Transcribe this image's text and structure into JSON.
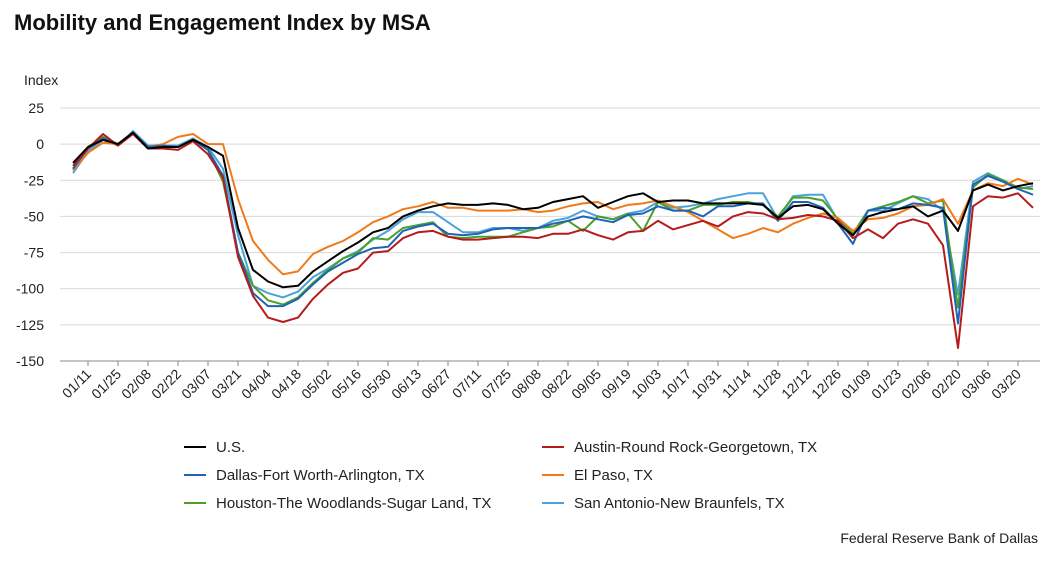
{
  "title": "Mobility and Engagement Index by MSA",
  "source": "Federal Reserve Bank of Dallas",
  "chart_data": {
    "type": "line",
    "title": "Mobility and Engagement Index by MSA",
    "ylabel": "Index",
    "xlabel": "",
    "ylim": [
      -150,
      25
    ],
    "yticks": [
      25,
      0,
      -25,
      -50,
      -75,
      -100,
      -125,
      -150
    ],
    "grid": "horizontal",
    "legend_position": "bottom",
    "x_tick_labels": [
      "01/11",
      "01/25",
      "02/08",
      "02/22",
      "03/07",
      "03/21",
      "04/04",
      "04/18",
      "05/02",
      "05/16",
      "05/30",
      "06/13",
      "06/27",
      "07/11",
      "07/25",
      "08/08",
      "08/22",
      "09/05",
      "09/19",
      "10/03",
      "10/17",
      "10/31",
      "11/14",
      "11/28",
      "12/12",
      "12/26",
      "01/09",
      "01/23",
      "02/06",
      "02/20",
      "03/06",
      "03/20"
    ],
    "x": [
      "01/04",
      "01/11",
      "01/18",
      "01/25",
      "02/01",
      "02/08",
      "02/15",
      "02/22",
      "02/29",
      "03/07",
      "03/14",
      "03/21",
      "03/28",
      "04/04",
      "04/11",
      "04/18",
      "04/25",
      "05/02",
      "05/09",
      "05/16",
      "05/23",
      "05/30",
      "06/06",
      "06/13",
      "06/20",
      "06/27",
      "07/04",
      "07/11",
      "07/18",
      "07/25",
      "08/01",
      "08/08",
      "08/15",
      "08/22",
      "08/29",
      "09/05",
      "09/12",
      "09/19",
      "09/26",
      "10/03",
      "10/10",
      "10/17",
      "10/24",
      "10/31",
      "11/07",
      "11/14",
      "11/21",
      "11/28",
      "12/05",
      "12/12",
      "12/19",
      "12/26",
      "01/02",
      "01/09",
      "01/16",
      "01/23",
      "01/30",
      "02/06",
      "02/13",
      "02/20",
      "02/27",
      "03/06",
      "03/13",
      "03/20",
      "03/27"
    ],
    "series": [
      {
        "name": "U.S.",
        "color": "#000000",
        "values": [
          -13,
          -2,
          3,
          0,
          8,
          -3,
          -2,
          -2,
          3,
          -2,
          -8,
          -58,
          -87,
          -95,
          -99,
          -98,
          -88,
          -81,
          -74,
          -68,
          -61,
          -58,
          -50,
          -46,
          -43,
          -41,
          -42,
          -42,
          -41,
          -42,
          -45,
          -44,
          -40,
          -38,
          -36,
          -44,
          -40,
          -36,
          -34,
          -40,
          -39,
          -39,
          -41,
          -41,
          -41,
          -41,
          -42,
          -51,
          -43,
          -42,
          -45,
          -55,
          -63,
          -50,
          -47,
          -45,
          -43,
          -50,
          -46,
          -60,
          -32,
          -28,
          -32,
          -29,
          -27
        ]
      },
      {
        "name": "Austin-Round Rock-Georgetown, TX",
        "color": "#b51b1b",
        "values": [
          -15,
          -3,
          7,
          -1,
          7,
          -3,
          -3,
          -4,
          2,
          -7,
          -23,
          -78,
          -105,
          -120,
          -123,
          -120,
          -107,
          -97,
          -89,
          -86,
          -75,
          -74,
          -65,
          -61,
          -60,
          -64,
          -66,
          -66,
          -65,
          -64,
          -64,
          -65,
          -62,
          -62,
          -59,
          -63,
          -66,
          -61,
          -60,
          -53,
          -59,
          -56,
          -53,
          -57,
          -50,
          -47,
          -48,
          -52,
          -51,
          -49,
          -50,
          -53,
          -65,
          -59,
          -65,
          -55,
          -52,
          -55,
          -70,
          -141,
          -43,
          -36,
          -37,
          -34,
          -44
        ]
      },
      {
        "name": "Dallas-Fort Worth-Arlington, TX",
        "color": "#1f63b5",
        "values": [
          -17,
          -3,
          4,
          0,
          8,
          -2,
          -1,
          -2,
          3,
          -4,
          -22,
          -75,
          -103,
          -112,
          -112,
          -107,
          -97,
          -88,
          -82,
          -76,
          -72,
          -71,
          -60,
          -57,
          -55,
          -62,
          -63,
          -62,
          -59,
          -58,
          -58,
          -58,
          -55,
          -53,
          -50,
          -52,
          -54,
          -49,
          -48,
          -43,
          -46,
          -46,
          -50,
          -43,
          -43,
          -41,
          -41,
          -53,
          -40,
          -40,
          -44,
          -55,
          -69,
          -46,
          -44,
          -45,
          -41,
          -42,
          -44,
          -124,
          -28,
          -22,
          -26,
          -31,
          -35
        ]
      },
      {
        "name": "El Paso, TX",
        "color": "#f07a1a",
        "values": [
          -18,
          -6,
          1,
          0,
          7,
          -2,
          0,
          5,
          7,
          0,
          0,
          -38,
          -67,
          -80,
          -90,
          -88,
          -76,
          -71,
          -67,
          -61,
          -54,
          -50,
          -45,
          -43,
          -40,
          -44,
          -44,
          -46,
          -46,
          -46,
          -45,
          -47,
          -46,
          -43,
          -41,
          -40,
          -45,
          -42,
          -41,
          -39,
          -43,
          -47,
          -53,
          -59,
          -65,
          -62,
          -58,
          -61,
          -55,
          -51,
          -48,
          -51,
          -60,
          -52,
          -51,
          -48,
          -43,
          -42,
          -38,
          -55,
          -32,
          -27,
          -29,
          -24,
          -28
        ]
      },
      {
        "name": "Houston-The Woodlands-Sugar Land, TX",
        "color": "#49a02b",
        "values": [
          -17,
          -2,
          5,
          0,
          8,
          -2,
          -2,
          -2,
          3,
          -4,
          -26,
          -75,
          -98,
          -108,
          -111,
          -106,
          -96,
          -87,
          -79,
          -75,
          -65,
          -66,
          -58,
          -56,
          -54,
          -64,
          -65,
          -64,
          -64,
          -64,
          -61,
          -58,
          -57,
          -53,
          -60,
          -50,
          -52,
          -48,
          -60,
          -40,
          -46,
          -46,
          -42,
          -42,
          -40,
          -40,
          -42,
          -50,
          -37,
          -37,
          -39,
          -52,
          -62,
          -46,
          -43,
          -40,
          -36,
          -41,
          -39,
          -113,
          -30,
          -21,
          -25,
          -30,
          -31
        ]
      },
      {
        "name": "San Antonio-New Braunfels, TX",
        "color": "#4aa3d8",
        "values": [
          -20,
          -5,
          3,
          -1,
          9,
          -1,
          -1,
          -1,
          4,
          -2,
          -17,
          -63,
          -98,
          -103,
          -106,
          -102,
          -92,
          -86,
          -79,
          -74,
          -66,
          -60,
          -52,
          -47,
          -47,
          -54,
          -61,
          -61,
          -58,
          -58,
          -60,
          -58,
          -53,
          -51,
          -46,
          -50,
          -52,
          -48,
          -46,
          -40,
          -44,
          -43,
          -41,
          -38,
          -36,
          -34,
          -34,
          -52,
          -36,
          -35,
          -35,
          -53,
          -62,
          -46,
          -46,
          -41,
          -36,
          -38,
          -46,
          -104,
          -26,
          -20,
          -25,
          -31,
          -29
        ]
      }
    ]
  }
}
